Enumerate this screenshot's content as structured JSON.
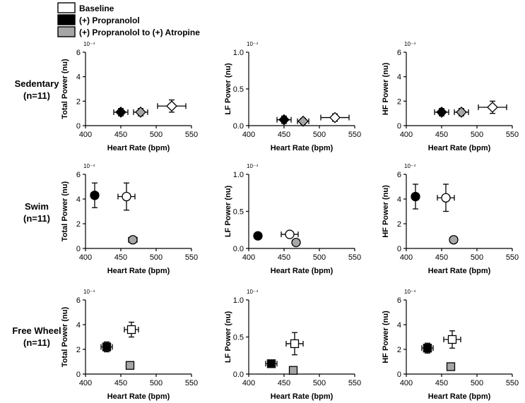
{
  "legend": [
    {
      "label": "Baseline",
      "fill": "#ffffff"
    },
    {
      "label": "(+) Propranolol",
      "fill": "#000000"
    },
    {
      "label": "(+) Propranolol to (+) Atropine",
      "fill": "#a6a6a6"
    }
  ],
  "rows": [
    {
      "label_line1": "Sedentary",
      "label_line2": "(n=11)",
      "marker": "diamond"
    },
    {
      "label_line1": "Swim",
      "label_line2": "(n=11)",
      "marker": "circle"
    },
    {
      "label_line1": "Free Wheel",
      "label_line2": "(n=11)",
      "marker": "square"
    }
  ],
  "chart_data": [
    {
      "type": "scatter",
      "row": 0,
      "col": 0,
      "xlabel": "Heart Rate (bpm)",
      "ylabel": "Total Power (nu)",
      "sci": "10⁻⁴",
      "xlim": [
        400,
        550
      ],
      "xticks": [
        400,
        450,
        500,
        550
      ],
      "ylim": [
        0,
        6
      ],
      "yticks": [
        0,
        2,
        4,
        6
      ],
      "ytick_labels": [
        "0",
        "2",
        "4",
        "6"
      ],
      "points": [
        {
          "series": "Baseline",
          "x": 522,
          "y": 1.6,
          "xerr": 20,
          "yerr": 0.5
        },
        {
          "series": "(+) Propranolol",
          "x": 450,
          "y": 1.1,
          "xerr": 10,
          "yerr": 0.3
        },
        {
          "series": "(+) Propranolol to (+) Atropine",
          "x": 478,
          "y": 1.1,
          "xerr": 10,
          "yerr": 0.3
        }
      ]
    },
    {
      "type": "scatter",
      "row": 0,
      "col": 1,
      "xlabel": "Heart Rate (bpm)",
      "ylabel": "LF Power (nu)",
      "sci": "10⁻⁴",
      "xlim": [
        400,
        550
      ],
      "xticks": [
        400,
        450,
        500,
        550
      ],
      "ylim": [
        0,
        1
      ],
      "yticks": [
        0,
        0.5,
        1
      ],
      "ytick_labels": [
        "0.0",
        "0.5",
        "1.0"
      ],
      "points": [
        {
          "series": "Baseline",
          "x": 522,
          "y": 0.11,
          "xerr": 20,
          "yerr": 0.05
        },
        {
          "series": "(+) Propranolol",
          "x": 450,
          "y": 0.08,
          "xerr": 10,
          "yerr": 0.05
        },
        {
          "series": "(+) Propranolol to (+) Atropine",
          "x": 477,
          "y": 0.06,
          "xerr": 8,
          "yerr": 0.04
        }
      ]
    },
    {
      "type": "scatter",
      "row": 0,
      "col": 2,
      "xlabel": "Heart Rate (bpm)",
      "ylabel": "HF Power (nu)",
      "sci": "10⁻⁴",
      "xlim": [
        400,
        550
      ],
      "xticks": [
        400,
        450,
        500,
        550
      ],
      "ylim": [
        0,
        6
      ],
      "yticks": [
        0,
        2,
        4,
        6
      ],
      "ytick_labels": [
        "0",
        "2",
        "4",
        "6"
      ],
      "points": [
        {
          "series": "Baseline",
          "x": 522,
          "y": 1.5,
          "xerr": 20,
          "yerr": 0.5
        },
        {
          "series": "(+) Propranolol",
          "x": 450,
          "y": 1.1,
          "xerr": 10,
          "yerr": 0.3
        },
        {
          "series": "(+) Propranolol to (+) Atropine",
          "x": 478,
          "y": 1.1,
          "xerr": 10,
          "yerr": 0.3
        }
      ]
    },
    {
      "type": "scatter",
      "row": 1,
      "col": 0,
      "xlabel": "Heart Rate (bpm)",
      "ylabel": "Total Power (nu)",
      "sci": "10⁻⁴",
      "xlim": [
        400,
        550
      ],
      "xticks": [
        400,
        450,
        500,
        550
      ],
      "ylim": [
        0,
        6
      ],
      "yticks": [
        0,
        2,
        4,
        6
      ],
      "ytick_labels": [
        "0",
        "2",
        "4",
        "6"
      ],
      "points": [
        {
          "series": "Baseline",
          "x": 458,
          "y": 4.2,
          "xerr": 12,
          "yerr": 1.1
        },
        {
          "series": "(+) Propranolol",
          "x": 413,
          "y": 4.3,
          "xerr": 5,
          "yerr": 1.0
        },
        {
          "series": "(+) Propranolol to (+) Atropine",
          "x": 467,
          "y": 0.7,
          "xerr": 6,
          "yerr": 0.2
        }
      ]
    },
    {
      "type": "scatter",
      "row": 1,
      "col": 1,
      "xlabel": "Heart Rate (bpm)",
      "ylabel": "LF Power (nu)",
      "sci": "10⁻⁴",
      "xlim": [
        400,
        550
      ],
      "xticks": [
        400,
        450,
        500,
        550
      ],
      "ylim": [
        0,
        1
      ],
      "yticks": [
        0,
        0.5,
        1
      ],
      "ytick_labels": [
        "0.0",
        "0.5",
        "1.0"
      ],
      "points": [
        {
          "series": "Baseline",
          "x": 458,
          "y": 0.19,
          "xerr": 12,
          "yerr": 0.04
        },
        {
          "series": "(+) Propranolol",
          "x": 413,
          "y": 0.17,
          "xerr": 5,
          "yerr": 0.03
        },
        {
          "series": "(+) Propranolol to (+) Atropine",
          "x": 467,
          "y": 0.08,
          "xerr": 5,
          "yerr": 0.02
        }
      ]
    },
    {
      "type": "scatter",
      "row": 1,
      "col": 2,
      "xlabel": "Heart Rate (bpm)",
      "ylabel": "HF Power (nu)",
      "sci": "10⁻⁴",
      "xlim": [
        400,
        550
      ],
      "xticks": [
        400,
        450,
        500,
        550
      ],
      "ylim": [
        0,
        6
      ],
      "yticks": [
        0,
        2,
        4,
        6
      ],
      "ytick_labels": [
        "0",
        "2",
        "4",
        "6"
      ],
      "points": [
        {
          "series": "Baseline",
          "x": 456,
          "y": 4.1,
          "xerr": 12,
          "yerr": 1.1
        },
        {
          "series": "(+) Propranolol",
          "x": 413,
          "y": 4.2,
          "xerr": 5,
          "yerr": 1.0
        },
        {
          "series": "(+) Propranolol to (+) Atropine",
          "x": 467,
          "y": 0.7,
          "xerr": 5,
          "yerr": 0.2
        }
      ]
    },
    {
      "type": "scatter",
      "row": 2,
      "col": 0,
      "xlabel": "Heart Rate (bpm)",
      "ylabel": "Total Power (nu)",
      "sci": "10⁻⁴",
      "xlim": [
        400,
        550
      ],
      "xticks": [
        400,
        450,
        500,
        550
      ],
      "ylim": [
        0,
        6
      ],
      "yticks": [
        0,
        2,
        4,
        6
      ],
      "ytick_labels": [
        "0",
        "2",
        "4",
        "6"
      ],
      "points": [
        {
          "series": "Baseline",
          "x": 465,
          "y": 3.6,
          "xerr": 10,
          "yerr": 0.6
        },
        {
          "series": "(+) Propranolol",
          "x": 430,
          "y": 2.2,
          "xerr": 8,
          "yerr": 0.4
        },
        {
          "series": "(+) Propranolol to (+) Atropine",
          "x": 463,
          "y": 0.7,
          "xerr": 3,
          "yerr": 0.1
        }
      ]
    },
    {
      "type": "scatter",
      "row": 2,
      "col": 1,
      "xlabel": "Heart Rate (bpm)",
      "ylabel": "LF Power (nu)",
      "sci": "10⁻⁴",
      "xlim": [
        400,
        550
      ],
      "xticks": [
        400,
        450,
        500,
        550
      ],
      "ylim": [
        0,
        1
      ],
      "yticks": [
        0,
        0.5,
        1
      ],
      "ytick_labels": [
        "0.0",
        "0.5",
        "1.0"
      ],
      "points": [
        {
          "series": "Baseline",
          "x": 465,
          "y": 0.41,
          "xerr": 12,
          "yerr": 0.15
        },
        {
          "series": "(+) Propranolol",
          "x": 432,
          "y": 0.14,
          "xerr": 8,
          "yerr": 0.03
        },
        {
          "series": "(+) Propranolol to (+) Atropine",
          "x": 463,
          "y": 0.05,
          "xerr": 3,
          "yerr": 0.01
        }
      ]
    },
    {
      "type": "scatter",
      "row": 2,
      "col": 2,
      "xlabel": "Heart Rate (bpm)",
      "ylabel": "HF Power (nu)",
      "sci": "10⁻⁴",
      "xlim": [
        400,
        550
      ],
      "xticks": [
        400,
        450,
        500,
        550
      ],
      "ylim": [
        0,
        6
      ],
      "yticks": [
        0,
        2,
        4,
        6
      ],
      "ytick_labels": [
        "0",
        "2",
        "4",
        "6"
      ],
      "points": [
        {
          "series": "Baseline",
          "x": 465,
          "y": 2.8,
          "xerr": 12,
          "yerr": 0.7
        },
        {
          "series": "(+) Propranolol",
          "x": 430,
          "y": 2.1,
          "xerr": 8,
          "yerr": 0.4
        },
        {
          "series": "(+) Propranolol to (+) Atropine",
          "x": 463,
          "y": 0.6,
          "xerr": 3,
          "yerr": 0.1
        }
      ]
    }
  ]
}
